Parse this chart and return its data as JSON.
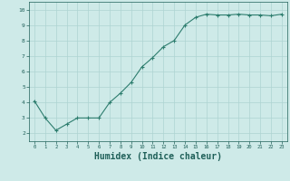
{
  "x": [
    0,
    1,
    2,
    3,
    4,
    5,
    6,
    7,
    8,
    9,
    10,
    11,
    12,
    13,
    14,
    15,
    16,
    17,
    18,
    19,
    20,
    21,
    22,
    23
  ],
  "y": [
    4.1,
    3.0,
    2.2,
    2.6,
    3.0,
    3.0,
    3.0,
    4.0,
    4.6,
    5.3,
    6.3,
    6.9,
    7.6,
    8.0,
    9.0,
    9.5,
    9.7,
    9.65,
    9.65,
    9.7,
    9.65,
    9.65,
    9.6,
    9.7
  ],
  "line_color": "#2d7d6e",
  "marker": "+",
  "marker_size": 3,
  "bg_color": "#ceeae8",
  "grid_color": "#aed4d2",
  "xlabel": "Humidex (Indice chaleur)",
  "xlabel_fontsize": 7,
  "xlabel_color": "#1e5f58",
  "tick_color": "#1e5f58",
  "ylim": [
    1.5,
    10.5
  ],
  "xlim": [
    -0.5,
    23.5
  ],
  "yticks": [
    2,
    3,
    4,
    5,
    6,
    7,
    8,
    9,
    10
  ],
  "xticks": [
    0,
    1,
    2,
    3,
    4,
    5,
    6,
    7,
    8,
    9,
    10,
    11,
    12,
    13,
    14,
    15,
    16,
    17,
    18,
    19,
    20,
    21,
    22,
    23
  ]
}
